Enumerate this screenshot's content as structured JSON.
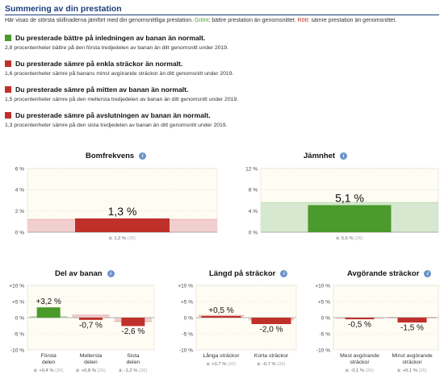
{
  "summary": {
    "title": "Summering av din prestation",
    "desc_prefix": "Här visas de största skillnaderna jämfört med din genomsnittliga prestation. ",
    "desc_green": "Grönt",
    "desc_mid": ": bättre prestation än genomsnittet. ",
    "desc_red": "Rött",
    "desc_suffix": ": sämre prestation än genomsnittet."
  },
  "items": [
    {
      "status": "better",
      "headline": "Du presterade bättre på inledningen av banan än normalt.",
      "detail": "2,8 procentenheter bättre på den första tredjedelen av banan än ditt genomsnitt under 2019."
    },
    {
      "status": "worse",
      "headline": "Du presterade sämre på enkla sträckor än normalt.",
      "detail": "1,6 procentenheter sämre på banans minst avgörande sträckor än ditt genomsnitt under 2019."
    },
    {
      "status": "worse",
      "headline": "Du presterade sämre på mitten av banan än normalt.",
      "detail": "1,5 procentenheter sämre på den mellersta tredjedelen av banan än ditt genomsnitt under 2019."
    },
    {
      "status": "worse",
      "headline": "Du presterade sämre på avslutningen av banan än normalt.",
      "detail": "1,3 procentenheter sämre på den sista tredjedelen av banan än ditt genomsnitt under 2019."
    }
  ],
  "colors": {
    "better": "#4a9a2c",
    "worse": "#c0302a",
    "better_band": "#d6e8cf",
    "worse_band": "#f2cfcf",
    "plot_bg": "#fffdf3"
  },
  "icons": {
    "info": "info-icon"
  },
  "info_glyph": "i",
  "chart_data": [
    {
      "type": "bar",
      "title": "Bomfrekvens",
      "yticks": [
        "6 %",
        "4 %",
        "2 %",
        "0 %"
      ],
      "ylim": [
        0,
        6
      ],
      "bars": [
        {
          "category": "",
          "value": 1.3,
          "label": "1,3 %",
          "avg": 1.2,
          "avg_label": "ä: 1,2 %",
          "count": "(26)",
          "status": "worse"
        }
      ]
    },
    {
      "type": "bar",
      "title": "Jämnhet",
      "yticks": [
        "12 %",
        "8 %",
        "4 %",
        "0 %"
      ],
      "ylim": [
        0,
        12
      ],
      "bars": [
        {
          "category": "",
          "value": 5.1,
          "label": "5,1 %",
          "avg": 5.6,
          "avg_label": "ä: 5,6 %",
          "count": "(26)",
          "status": "better"
        }
      ]
    },
    {
      "type": "bar",
      "title": "Del av banan",
      "yticks": [
        "+10 %",
        "+5 %",
        "0 %",
        "-5 %",
        "-10 %"
      ],
      "ylim": [
        -10,
        10
      ],
      "bars": [
        {
          "category": [
            "Första",
            "delen"
          ],
          "value": 3.2,
          "label": "+3,2 %",
          "avg": 0.4,
          "avg_label": "ä: +0,4 %",
          "count": "(26)",
          "status": "better"
        },
        {
          "category": [
            "Mellersta",
            "delen"
          ],
          "value": -0.7,
          "label": "-0,7 %",
          "avg": 0.8,
          "avg_label": "ä: +0,8 %",
          "count": "(26)",
          "status": "worse"
        },
        {
          "category": [
            "Sista",
            "delen"
          ],
          "value": -2.6,
          "label": "-2,6 %",
          "avg": -1.2,
          "avg_label": "ä: -1,2 %",
          "count": "(26)",
          "status": "worse"
        }
      ]
    },
    {
      "type": "bar",
      "title": "Längd på sträckor",
      "yticks": [
        "+10 %",
        "+5 %",
        "0 %",
        "-5 %",
        "-10 %"
      ],
      "ylim": [
        -10,
        10
      ],
      "bars": [
        {
          "category": [
            "Långa sträckor"
          ],
          "value": 0.5,
          "label": "+0,5 %",
          "avg": 0.7,
          "avg_label": "ä: +0,7 %",
          "count": "(26)",
          "status": "worse"
        },
        {
          "category": [
            "Korta sträckor"
          ],
          "value": -2.0,
          "label": "-2,0 %",
          "avg": -0.7,
          "avg_label": "ä: -0,7 %",
          "count": "(26)",
          "status": "worse"
        }
      ]
    },
    {
      "type": "bar",
      "title": "Avgörande sträckor",
      "yticks": [
        "+10 %",
        "+5 %",
        "0 %",
        "-5 %",
        "-10 %"
      ],
      "ylim": [
        -10,
        10
      ],
      "bars": [
        {
          "category": [
            "Mest avgörande",
            "sträckor"
          ],
          "value": -0.5,
          "label": "-0,5 %",
          "avg": -0.1,
          "avg_label": "ä: -0,1 %",
          "count": "(26)",
          "status": "worse"
        },
        {
          "category": [
            "Minst avgörande",
            "sträckor"
          ],
          "value": -1.5,
          "label": "-1,5 %",
          "avg": 0.1,
          "avg_label": "ä: +0,1 %",
          "count": "(26)",
          "status": "worse"
        }
      ]
    }
  ]
}
